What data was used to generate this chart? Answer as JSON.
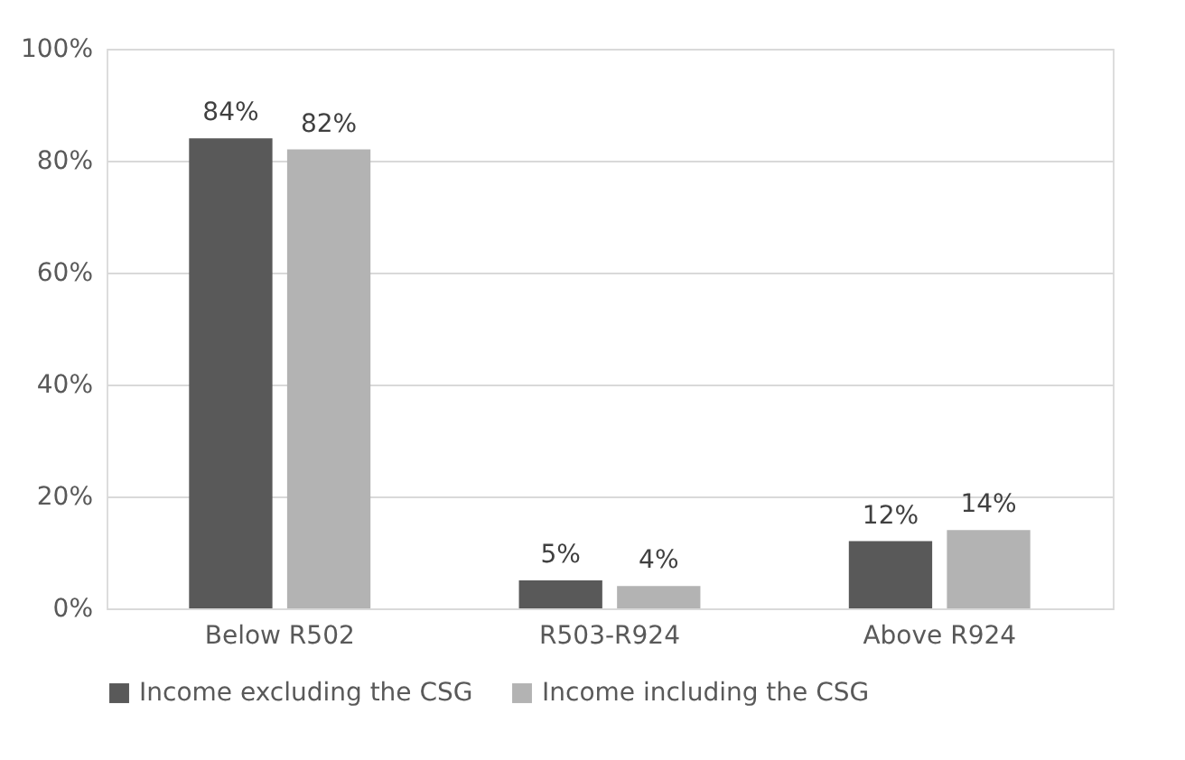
{
  "chart_data": {
    "type": "bar",
    "categories": [
      "Below R502",
      "R503-R924",
      "Above R924"
    ],
    "series": [
      {
        "name": "Income excluding the CSG",
        "color": "#595959",
        "values": [
          84,
          5,
          12
        ],
        "value_labels": [
          "84%",
          "5%",
          "12%"
        ]
      },
      {
        "name": "Income including the CSG",
        "color": "#b3b3b3",
        "values": [
          82,
          4,
          14
        ],
        "value_labels": [
          "82%",
          "4%",
          "14%"
        ]
      }
    ],
    "ylim": [
      0,
      100
    ],
    "yticks": [
      {
        "value": 0,
        "label": "0%"
      },
      {
        "value": 20,
        "label": "20%"
      },
      {
        "value": 40,
        "label": "40%"
      },
      {
        "value": 60,
        "label": "60%"
      },
      {
        "value": 80,
        "label": "80%"
      },
      {
        "value": 100,
        "label": "100%"
      }
    ],
    "grid": "y",
    "legend": "bottom"
  }
}
